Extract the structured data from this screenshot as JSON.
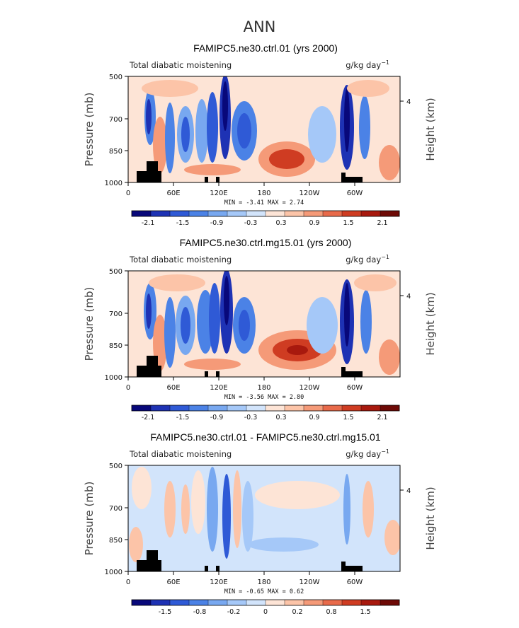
{
  "figure_title": "ANN",
  "colors": {
    "scale": [
      "#08087a",
      "#1e32b4",
      "#2f5ad6",
      "#4b82e6",
      "#78a8f0",
      "#a5c8f8",
      "#d2e4fb",
      "#fde4d6",
      "#fcc4a8",
      "#f59a78",
      "#e86a4a",
      "#cf3c22",
      "#a8190e",
      "#6e0a06"
    ],
    "land": "#000000"
  },
  "panels": [
    {
      "title": "FAMIPC5.ne30.ctrl.01 (yrs 2000)",
      "left_label": "Total diabatic moistening",
      "units_label": "g/kg day",
      "units_exp": "−1",
      "ylabel": "Pressure (mb)",
      "y2label": "Height (km)",
      "ytick_labels": [
        "500",
        "700",
        "850",
        "1000"
      ],
      "y2tick_label": "4",
      "xtick_labels": [
        "0",
        "60E",
        "120E",
        "180",
        "120W",
        "60W"
      ],
      "stats_text": "MIN =   -3.41   MAX =    2.74",
      "colorbar_labels": [
        "-2.1",
        "-1.5",
        "-0.9",
        "-0.3",
        "0.3",
        "0.9",
        "1.5",
        "2.1"
      ],
      "chart_data": {
        "type": "heatmap",
        "title": "FAMIPC5.ne30.ctrl.01 (yrs 2000)",
        "field": "Total diabatic moistening",
        "units": "g/kg day^-1",
        "x_axis": "longitude",
        "xlim_deg": [
          0,
          360
        ],
        "xticks_deg": [
          0,
          60,
          120,
          180,
          240,
          300
        ],
        "ylabel": "Pressure (mb)",
        "y_axis": "pressure",
        "ylim_mb": [
          1000,
          500
        ],
        "yticks_mb": [
          500,
          700,
          850,
          1000
        ],
        "y2label": "Height (km)",
        "y2ticks_km": [
          4
        ],
        "min": -3.41,
        "max": 2.74,
        "contour_levels": [
          -2.4,
          -2.1,
          -1.8,
          -1.5,
          -1.2,
          -0.9,
          -0.6,
          -0.3,
          0,
          0.3,
          0.6,
          0.9,
          1.2,
          1.5,
          1.8,
          2.1,
          2.4
        ],
        "colorbar_ticks": [
          -2.1,
          -1.5,
          -0.9,
          -0.3,
          0.3,
          0.9,
          1.5,
          2.1
        ],
        "features": [
          {
            "lon": 18,
            "p_mb": 720,
            "value": -1.5
          },
          {
            "lon": 35,
            "p_mb": 820,
            "value": 1.5
          },
          {
            "lon": 62,
            "p_mb": 740,
            "value": -1.2
          },
          {
            "lon": 100,
            "p_mb": 760,
            "value": -1.0
          },
          {
            "lon": 130,
            "p_mb": 650,
            "value": -1.6
          },
          {
            "lon": 155,
            "p_mb": 730,
            "value": -1.6
          },
          {
            "lon": 205,
            "p_mb": 880,
            "value": 2.0
          },
          {
            "lon": 287,
            "p_mb": 750,
            "value": -3.0
          },
          {
            "lon": 300,
            "p_mb": 740,
            "value": -1.5
          },
          {
            "lon": 345,
            "p_mb": 880,
            "value": 1.2
          }
        ],
        "land_lon_ranges": [
          [
            5,
            38
          ],
          [
            100,
            103
          ],
          [
            110,
            112
          ],
          [
            270,
            290
          ]
        ]
      }
    },
    {
      "title": "FAMIPC5.ne30.ctrl.mg15.01 (yrs 2000)",
      "left_label": "Total diabatic moistening",
      "units_label": "g/kg day",
      "units_exp": "−1",
      "ylabel": "Pressure (mb)",
      "y2label": "Height (km)",
      "ytick_labels": [
        "500",
        "700",
        "850",
        "1000"
      ],
      "y2tick_label": "4",
      "xtick_labels": [
        "0",
        "60E",
        "120E",
        "180",
        "120W",
        "60W"
      ],
      "stats_text": "MIN =   -3.56   MAX =    2.80",
      "colorbar_labels": [
        "-2.1",
        "-1.5",
        "-0.9",
        "-0.3",
        "0.3",
        "0.9",
        "1.5",
        "2.1"
      ],
      "chart_data": {
        "type": "heatmap",
        "title": "FAMIPC5.ne30.ctrl.mg15.01 (yrs 2000)",
        "field": "Total diabatic moistening",
        "units": "g/kg day^-1",
        "x_axis": "longitude",
        "xlim_deg": [
          0,
          360
        ],
        "xticks_deg": [
          0,
          60,
          120,
          180,
          240,
          300
        ],
        "ylabel": "Pressure (mb)",
        "y_axis": "pressure",
        "ylim_mb": [
          1000,
          500
        ],
        "yticks_mb": [
          500,
          700,
          850,
          1000
        ],
        "y2label": "Height (km)",
        "y2ticks_km": [
          4
        ],
        "min": -3.56,
        "max": 2.8,
        "contour_levels": [
          -2.4,
          -2.1,
          -1.8,
          -1.5,
          -1.2,
          -0.9,
          -0.6,
          -0.3,
          0,
          0.3,
          0.6,
          0.9,
          1.2,
          1.5,
          1.8,
          2.1,
          2.4
        ],
        "colorbar_ticks": [
          -2.1,
          -1.5,
          -0.9,
          -0.3,
          0.3,
          0.9,
          1.5,
          2.1
        ],
        "features": [
          {
            "lon": 18,
            "p_mb": 720,
            "value": -1.6
          },
          {
            "lon": 35,
            "p_mb": 830,
            "value": 1.6
          },
          {
            "lon": 62,
            "p_mb": 740,
            "value": -1.2
          },
          {
            "lon": 100,
            "p_mb": 740,
            "value": -1.2
          },
          {
            "lon": 130,
            "p_mb": 640,
            "value": -1.8
          },
          {
            "lon": 155,
            "p_mb": 730,
            "value": -1.4
          },
          {
            "lon": 210,
            "p_mb": 870,
            "value": 2.1
          },
          {
            "lon": 287,
            "p_mb": 750,
            "value": -3.0
          },
          {
            "lon": 300,
            "p_mb": 740,
            "value": -1.4
          },
          {
            "lon": 345,
            "p_mb": 900,
            "value": 1.0
          }
        ],
        "land_lon_ranges": [
          [
            5,
            38
          ],
          [
            100,
            103
          ],
          [
            110,
            112
          ],
          [
            270,
            290
          ]
        ]
      }
    },
    {
      "title": "FAMIPC5.ne30.ctrl.01 - FAMIPC5.ne30.ctrl.mg15.01",
      "left_label": "Total diabatic moistening",
      "units_label": "g/kg day",
      "units_exp": "−1",
      "ylabel": "Pressure (mb)",
      "y2label": "Height (km)",
      "ytick_labels": [
        "500",
        "700",
        "850",
        "1000"
      ],
      "y2tick_label": "4",
      "xtick_labels": [
        "0",
        "60E",
        "120E",
        "180",
        "120W",
        "60W"
      ],
      "stats_text": "MIN =   -0.65   MAX =    0.62",
      "colorbar_labels": [
        "-1.5",
        "-0.8",
        "-0.2",
        "0",
        "0.2",
        "0.8",
        "1.5"
      ],
      "chart_data": {
        "type": "heatmap",
        "title": "FAMIPC5.ne30.ctrl.01 - FAMIPC5.ne30.ctrl.mg15.01",
        "field": "Total diabatic moistening (difference)",
        "units": "g/kg day^-1",
        "x_axis": "longitude",
        "xlim_deg": [
          0,
          360
        ],
        "xticks_deg": [
          0,
          60,
          120,
          180,
          240,
          300
        ],
        "ylabel": "Pressure (mb)",
        "y_axis": "pressure",
        "ylim_mb": [
          1000,
          500
        ],
        "yticks_mb": [
          500,
          700,
          850,
          1000
        ],
        "y2label": "Height (km)",
        "y2ticks_km": [
          4
        ],
        "min": -0.65,
        "max": 0.62,
        "contour_levels": [
          -1.5,
          -1.2,
          -0.8,
          -0.6,
          -0.4,
          -0.2,
          -0.1,
          0,
          0.1,
          0.2,
          0.4,
          0.6,
          0.8,
          1.2,
          1.5
        ],
        "colorbar_ticks": [
          -1.5,
          -0.8,
          -0.2,
          0,
          0.2,
          0.8,
          1.5
        ],
        "features": [
          {
            "lon": 110,
            "p_mb": 720,
            "value": -0.4
          },
          {
            "lon": 130,
            "p_mb": 700,
            "value": -0.5
          },
          {
            "lon": 90,
            "p_mb": 720,
            "value": 0.2
          },
          {
            "lon": 55,
            "p_mb": 700,
            "value": 0.2
          },
          {
            "lon": 195,
            "p_mb": 860,
            "value": -0.2
          },
          {
            "lon": 345,
            "p_mb": 880,
            "value": 0.3
          },
          {
            "lon": 340,
            "p_mb": 620,
            "value": 0.1
          },
          {
            "lon": 160,
            "p_mb": 620,
            "value": 0.05
          }
        ],
        "land_lon_ranges": [
          [
            5,
            38
          ],
          [
            100,
            103
          ],
          [
            110,
            112
          ],
          [
            270,
            290
          ]
        ]
      }
    }
  ]
}
